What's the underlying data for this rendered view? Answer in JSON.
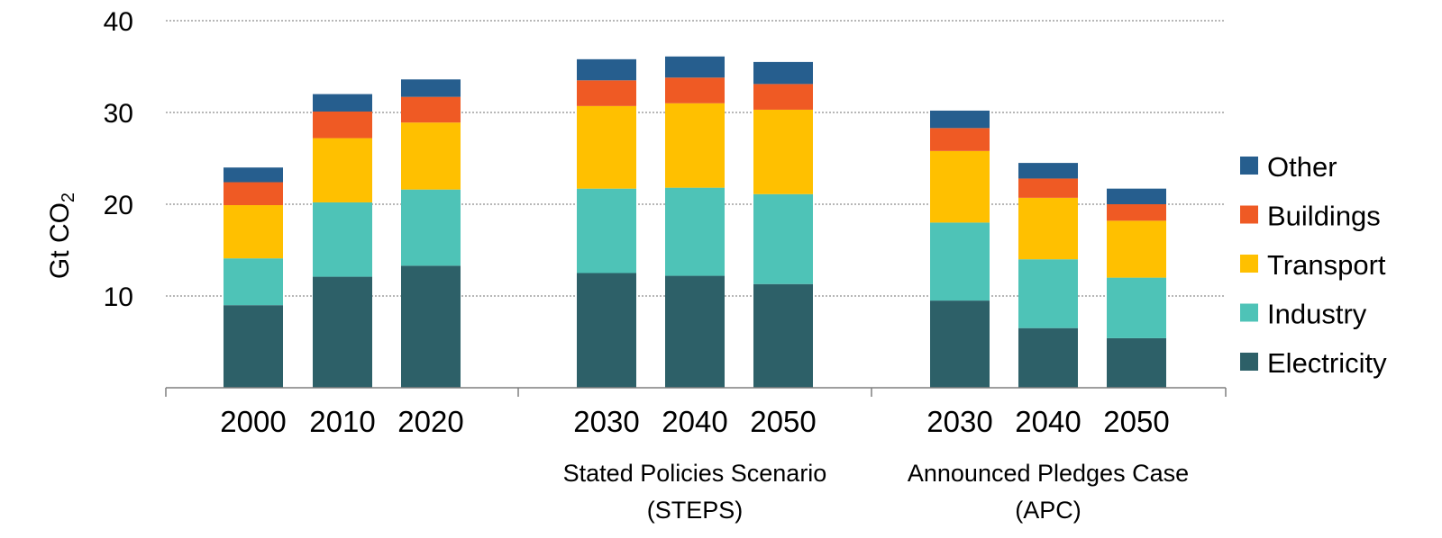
{
  "chart_data": {
    "type": "bar",
    "stacked": true,
    "ylabel": "Gt CO",
    "ylabel_subscript": "2",
    "ylim": [
      0,
      40
    ],
    "yticks": [
      "10",
      "20",
      "30",
      "40"
    ],
    "grid": true,
    "legend_position": "right",
    "categories": [
      "2000",
      "2010",
      "2020",
      "2030",
      "2040",
      "2050",
      "2030",
      "2040",
      "2050"
    ],
    "groups": [
      {
        "lines": [],
        "categories": [
          0,
          1,
          2
        ]
      },
      {
        "lines": [
          "Stated Policies Scenario",
          "(STEPS)"
        ],
        "categories": [
          3,
          4,
          5
        ]
      },
      {
        "lines": [
          "Announced Pledges Case",
          "(APC)"
        ],
        "categories": [
          6,
          7,
          8
        ]
      }
    ],
    "series": [
      {
        "name": "Electricity",
        "color": "#2d6068",
        "values": [
          9.0,
          12.1,
          13.3,
          12.5,
          12.2,
          11.3,
          9.5,
          6.5,
          5.4
        ]
      },
      {
        "name": "Industry",
        "color": "#4ec3b7",
        "values": [
          5.1,
          8.1,
          8.3,
          9.2,
          9.6,
          9.8,
          8.5,
          7.5,
          6.6
        ]
      },
      {
        "name": "Transport",
        "color": "#ffc000",
        "values": [
          5.8,
          7.0,
          7.3,
          9.0,
          9.2,
          9.2,
          7.8,
          6.7,
          6.2
        ]
      },
      {
        "name": "Buildings",
        "color": "#ef5a24",
        "values": [
          2.5,
          2.9,
          2.8,
          2.8,
          2.8,
          2.8,
          2.5,
          2.1,
          1.8
        ]
      },
      {
        "name": "Other",
        "color": "#265e8e",
        "values": [
          1.6,
          1.9,
          1.9,
          2.3,
          2.3,
          2.4,
          1.9,
          1.7,
          1.7
        ]
      }
    ]
  }
}
